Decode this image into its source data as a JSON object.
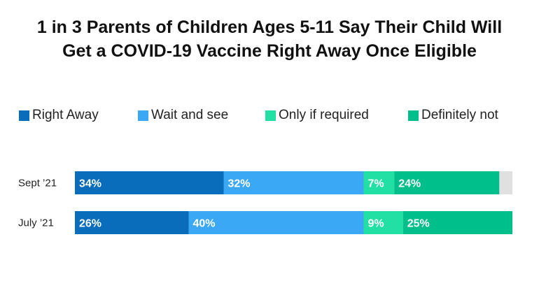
{
  "chart_data": {
    "type": "bar",
    "orientation": "horizontal-stacked",
    "title_line1": "1 in 3 Parents of Children Ages 5-11 Say Their Child Will",
    "title_line2": "Get a COVID-19 Vaccine Right Away Once Eligible",
    "categories": [
      "Sept ’21",
      "July ’21"
    ],
    "series": [
      {
        "name": "Right Away",
        "color": "#0a6dbc",
        "values": [
          34,
          26
        ],
        "labels": [
          "34%",
          "26%"
        ]
      },
      {
        "name": "Wait and see",
        "color": "#3ba8f5",
        "values": [
          32,
          40
        ],
        "labels": [
          "32%",
          "40%"
        ]
      },
      {
        "name": "Only if required",
        "color": "#22e0a4",
        "values": [
          7,
          9
        ],
        "labels": [
          "7%",
          "9%"
        ]
      },
      {
        "name": "Definitely not",
        "color": "#00bf8a",
        "values": [
          24,
          25
        ],
        "labels": [
          "24%",
          "25%"
        ]
      }
    ],
    "remainder_color": "#e0e0e0",
    "xlim": [
      0,
      100
    ],
    "legend_position": "top",
    "grid": false
  }
}
